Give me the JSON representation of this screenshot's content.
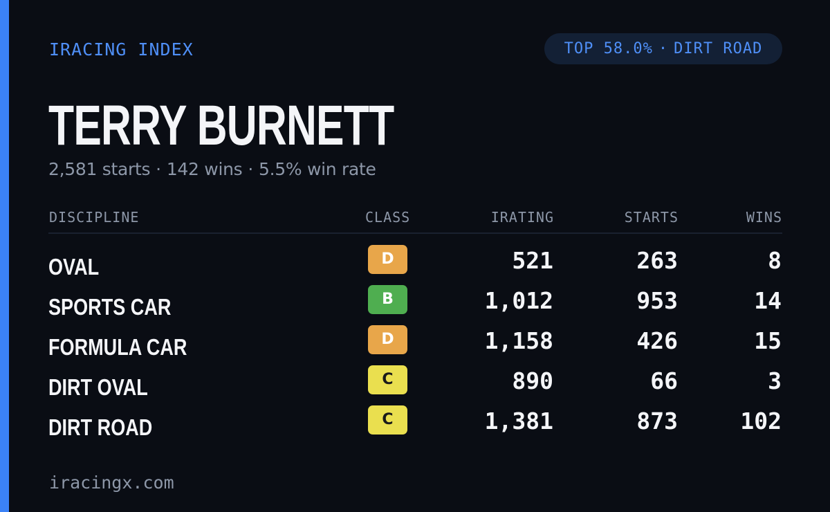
{
  "header": {
    "brand": "IRACING INDEX",
    "pill_rank": "TOP 58.0%",
    "pill_sep": "·",
    "pill_discipline": "DIRT ROAD"
  },
  "driver": {
    "name": "TERRY BURNETT",
    "starts": "2,581 starts",
    "wins": "142 wins",
    "win_rate": "5.5% win rate",
    "sep": "·"
  },
  "table": {
    "headers": {
      "discipline": "DISCIPLINE",
      "class": "CLASS",
      "irating": "IRATING",
      "starts": "STARTS",
      "wins": "WINS"
    },
    "rows": [
      {
        "discipline": "OVAL",
        "class": "D",
        "class_color": "#e8a64a",
        "irating": "521",
        "starts": "263",
        "wins": "8"
      },
      {
        "discipline": "SPORTS CAR",
        "class": "B",
        "class_color": "#4fae50",
        "irating": "1,012",
        "starts": "953",
        "wins": "14"
      },
      {
        "discipline": "FORMULA CAR",
        "class": "D",
        "class_color": "#e8a64a",
        "irating": "1,158",
        "starts": "426",
        "wins": "15"
      },
      {
        "discipline": "DIRT OVAL",
        "class": "C",
        "class_color": "#eadf4f",
        "irating": "890",
        "starts": "66",
        "wins": "3"
      },
      {
        "discipline": "DIRT ROAD",
        "class": "C",
        "class_color": "#eadf4f",
        "irating": "1,381",
        "starts": "873",
        "wins": "102"
      }
    ]
  },
  "footer": {
    "site": "iracingx.com"
  },
  "colors": {
    "accent": "#3b82f6",
    "background": "#0a0d14",
    "muted_text": "#8d97a8"
  }
}
